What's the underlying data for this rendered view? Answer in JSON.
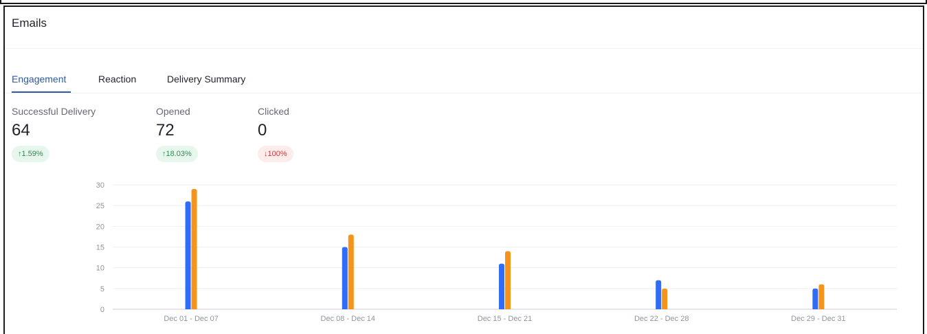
{
  "card": {
    "title": "Emails"
  },
  "tabs": [
    {
      "label": "Engagement",
      "active": true
    },
    {
      "label": "Reaction",
      "active": false
    },
    {
      "label": "Delivery Summary",
      "active": false
    }
  ],
  "metrics": [
    {
      "label": "Successful Delivery",
      "value": "64",
      "change": "↑1.59%",
      "trend": "up"
    },
    {
      "label": "Opened",
      "value": "72",
      "change": "↑18.03%",
      "trend": "up"
    },
    {
      "label": "Clicked",
      "value": "0",
      "change": "↓100%",
      "trend": "down"
    }
  ],
  "chart_data": {
    "type": "bar",
    "categories": [
      "Dec 01 - Dec 07",
      "Dec 08 - Dec 14",
      "Dec 15 - Dec 21",
      "Dec 22 - Dec 28",
      "Dec 29 - Dec 31"
    ],
    "series": [
      {
        "values": [
          26,
          15,
          11,
          7,
          5
        ],
        "color": "#2f6df6"
      },
      {
        "values": [
          29,
          18,
          14,
          5,
          6
        ],
        "color": "#f5941d"
      }
    ],
    "yticks": [
      0,
      5,
      10,
      15,
      20,
      25,
      30
    ],
    "ylim": [
      0,
      30
    ],
    "grid": true,
    "xlabel": "",
    "ylabel": ""
  }
}
